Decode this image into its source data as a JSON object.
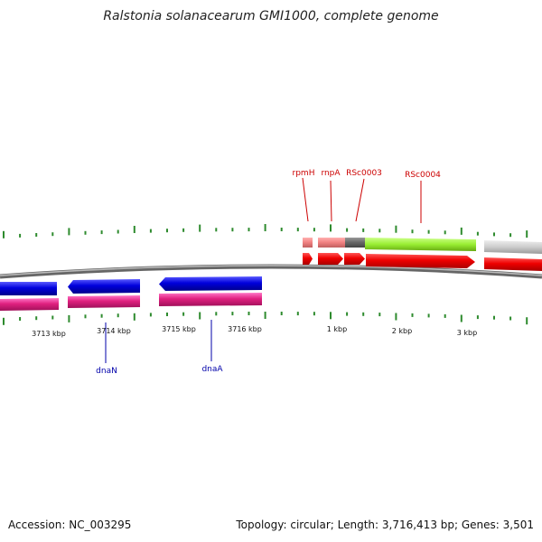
{
  "title": "Ralstonia solanacearum GMI1000, complete genome",
  "footer": {
    "accession": "Accession: NC_003295",
    "stats": "Topology: circular; Length: 3,716,413 bp; Genes: 3,501"
  },
  "scale_labels": [
    "3713 kbp",
    "3714 kbp",
    "3715 kbp",
    "3716 kbp",
    "1 kbp",
    "2 kbp",
    "3 kbp"
  ],
  "gene_labels": {
    "rpmH": "rpmH",
    "rnpA": "rnpA",
    "RSc0003": "RSc0003",
    "RSc0004": "RSc0004",
    "dnaN": "dnaN",
    "dnaA": "dnaA"
  },
  "colors": {
    "plus_label": "#cc0000",
    "minus_label": "#0000aa",
    "tick": "#2e8b2e",
    "backbone": "#808080"
  }
}
